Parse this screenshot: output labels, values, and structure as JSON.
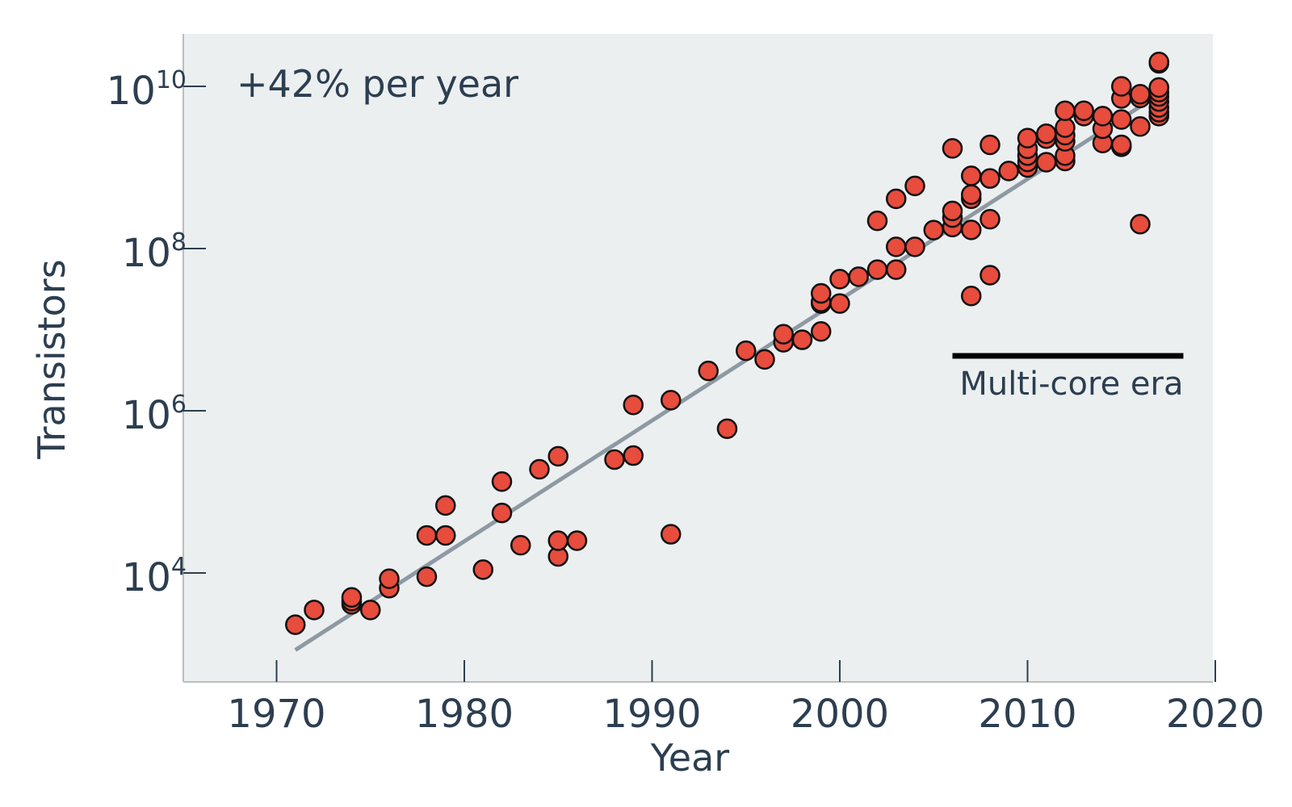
{
  "chart_data": {
    "type": "scatter",
    "xlabel": "Year",
    "ylabel": "Transistors",
    "xlim": [
      1965,
      2020
    ],
    "ylim_log10": [
      2.75,
      10.65
    ],
    "y_scale": "log",
    "x_ticks": [
      1970,
      1980,
      1990,
      2000,
      2010,
      2020
    ],
    "x_tick_labels": [
      "1970",
      "1980",
      "1990",
      "2000",
      "2010",
      "2020"
    ],
    "y_ticks_log10": [
      4,
      6,
      8,
      10
    ],
    "y_tick_base": "10",
    "y_tick_exponents": [
      "4",
      "6",
      "8",
      "10"
    ],
    "annotation": "+42% per year",
    "era_label": "Multi-core era",
    "era_range": [
      2006,
      2018.3
    ],
    "trend": {
      "x": [
        1971,
        2017
      ],
      "log10_y": [
        3.05,
        9.9
      ]
    },
    "colors": {
      "background": "#eceff0",
      "point_fill": "#e74c3c",
      "point_stroke": "#111111",
      "trend": "#8e99a3",
      "text": "#2c3e50",
      "axis": "#bdbdbd"
    },
    "points": [
      [
        1971,
        2300
      ],
      [
        1972,
        3500
      ],
      [
        1974,
        4100
      ],
      [
        1974,
        4500
      ],
      [
        1974,
        5000
      ],
      [
        1975,
        3500
      ],
      [
        1976,
        6500
      ],
      [
        1976,
        8500
      ],
      [
        1978,
        9000
      ],
      [
        1978,
        29000
      ],
      [
        1979,
        29000
      ],
      [
        1979,
        68000
      ],
      [
        1981,
        11000
      ],
      [
        1982,
        55000
      ],
      [
        1982,
        134000
      ],
      [
        1983,
        22000
      ],
      [
        1984,
        190000
      ],
      [
        1985,
        16000
      ],
      [
        1985,
        25000
      ],
      [
        1985,
        275000
      ],
      [
        1986,
        25000
      ],
      [
        1988,
        250000
      ],
      [
        1989,
        280000
      ],
      [
        1989,
        1180000
      ],
      [
        1991,
        30000
      ],
      [
        1991,
        1350000
      ],
      [
        1993,
        3100000
      ],
      [
        1994,
        600000
      ],
      [
        1995,
        5500000
      ],
      [
        1996,
        4300000
      ],
      [
        1997,
        7000000
      ],
      [
        1997,
        8800000
      ],
      [
        1998,
        7500000
      ],
      [
        1999,
        9500000
      ],
      [
        1999,
        21000000
      ],
      [
        1999,
        22000000
      ],
      [
        1999,
        28000000
      ],
      [
        2000,
        21000000
      ],
      [
        2000,
        42000000
      ],
      [
        2001,
        45000000
      ],
      [
        2002,
        55000000
      ],
      [
        2002,
        220000000
      ],
      [
        2003,
        55000000
      ],
      [
        2003,
        105000000
      ],
      [
        2003,
        410000000
      ],
      [
        2004,
        105000000
      ],
      [
        2004,
        592000000
      ],
      [
        2005,
        169000000
      ],
      [
        2006,
        184000000
      ],
      [
        2006,
        241000000
      ],
      [
        2006,
        291000000
      ],
      [
        2006,
        1720000000
      ],
      [
        2007,
        26000000
      ],
      [
        2007,
        170000000
      ],
      [
        2007,
        411000000
      ],
      [
        2007,
        463000000
      ],
      [
        2007,
        789000000
      ],
      [
        2008,
        47000000
      ],
      [
        2008,
        230000000
      ],
      [
        2008,
        731000000
      ],
      [
        2008,
        1900000000
      ],
      [
        2009,
        904000000
      ],
      [
        2010,
        1000000000
      ],
      [
        2010,
        1170000000
      ],
      [
        2010,
        1400000000
      ],
      [
        2010,
        1700000000
      ],
      [
        2010,
        2300000000
      ],
      [
        2011,
        1160000000
      ],
      [
        2011,
        2270000000
      ],
      [
        2011,
        2600000000
      ],
      [
        2012,
        1200000000
      ],
      [
        2012,
        1400000000
      ],
      [
        2012,
        2100000000
      ],
      [
        2012,
        2500000000
      ],
      [
        2012,
        3100000000
      ],
      [
        2012,
        5000000000
      ],
      [
        2013,
        4300000000
      ],
      [
        2013,
        5000000000
      ],
      [
        2014,
        2000000000
      ],
      [
        2014,
        3000000000
      ],
      [
        2014,
        4300000000
      ],
      [
        2015,
        1800000000
      ],
      [
        2015,
        1900000000
      ],
      [
        2015,
        3900000000
      ],
      [
        2015,
        7100000000
      ],
      [
        2015,
        10000000000
      ],
      [
        2016,
        200000000
      ],
      [
        2016,
        3200000000
      ],
      [
        2016,
        7200000000
      ],
      [
        2016,
        8000000000
      ],
      [
        2017,
        4300000000
      ],
      [
        2017,
        4800000000
      ],
      [
        2017,
        5500000000
      ],
      [
        2017,
        6500000000
      ],
      [
        2017,
        7500000000
      ],
      [
        2017,
        8500000000
      ],
      [
        2017,
        9700000000
      ],
      [
        2017,
        19200000000
      ],
      [
        2017,
        20000000000
      ]
    ]
  }
}
